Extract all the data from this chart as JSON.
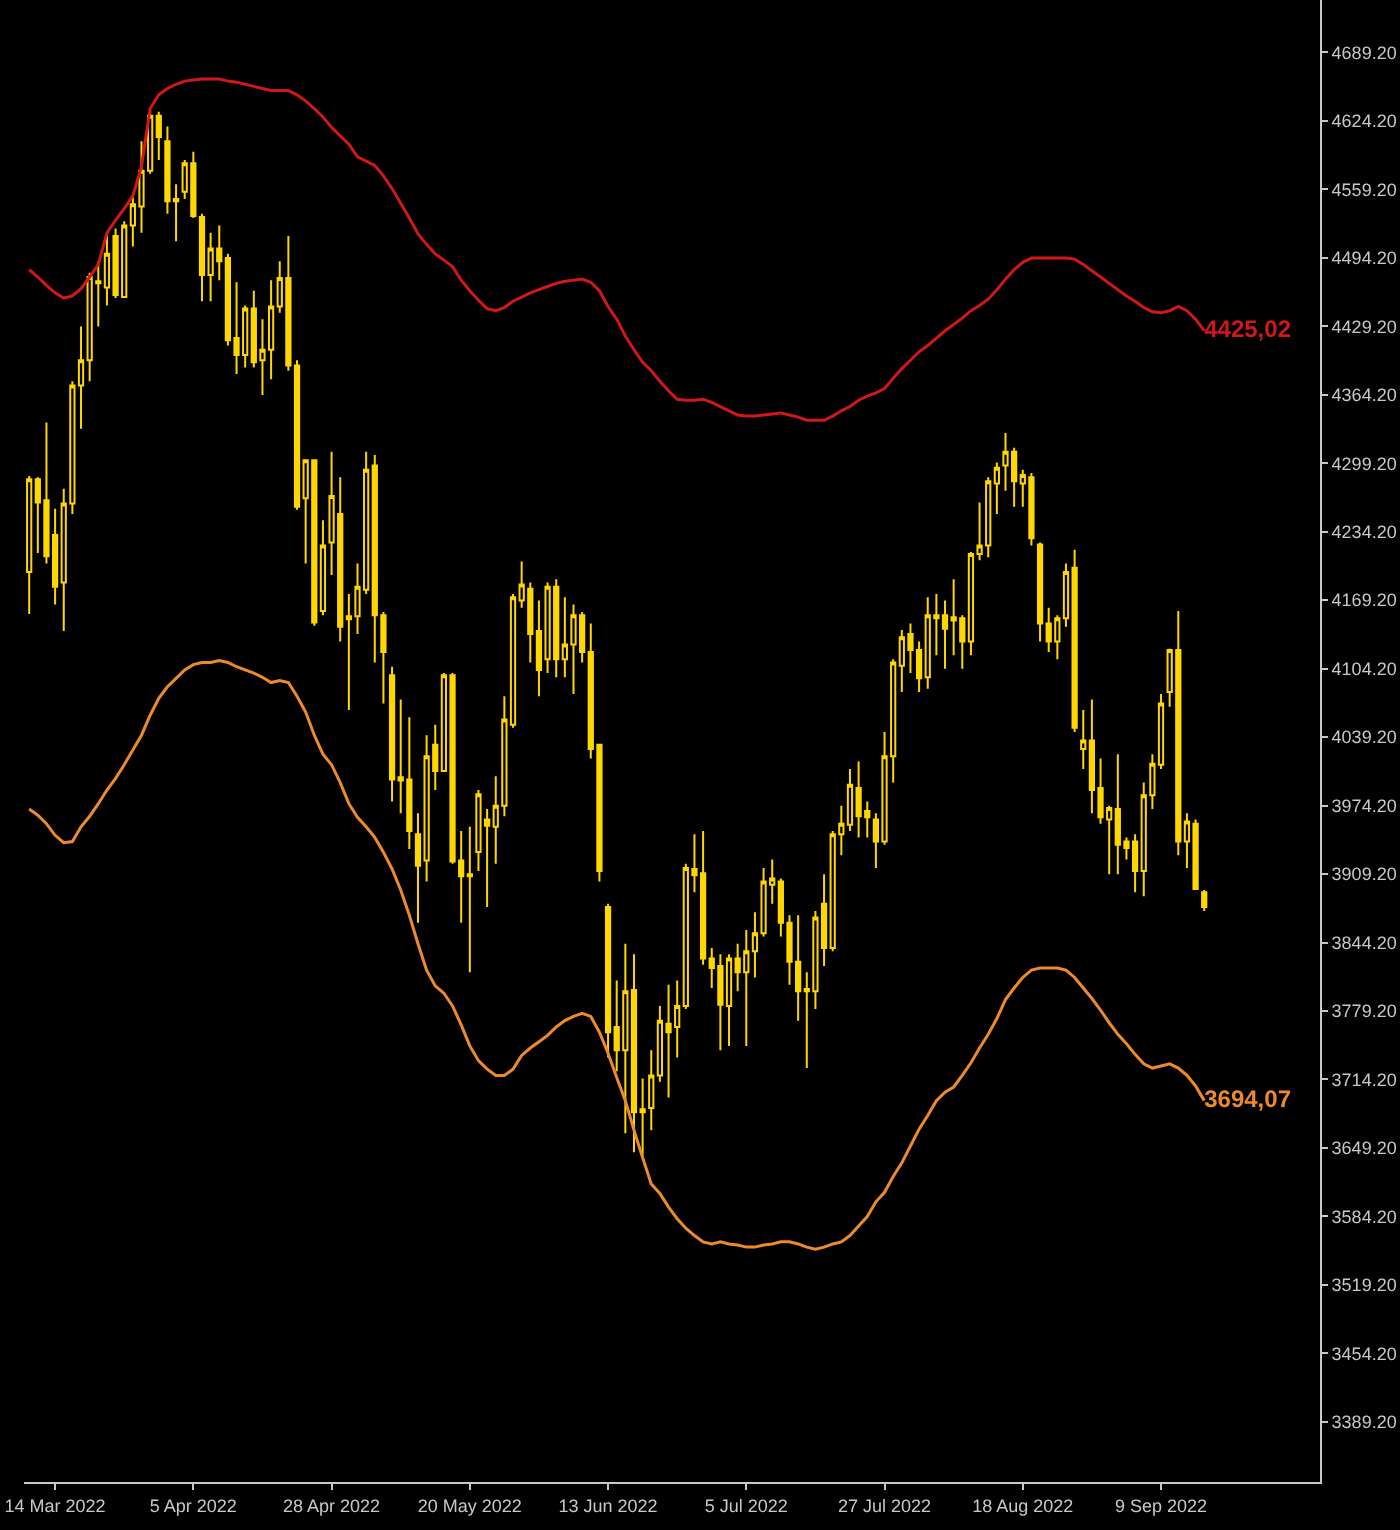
{
  "chart_data": {
    "type": "candlestick",
    "color": "#ffd700",
    "categories": [
      null,
      null,
      null,
      "14 Mar 2022",
      null,
      null,
      null,
      null,
      null,
      null,
      null,
      null,
      null,
      null,
      null,
      null,
      null,
      null,
      null,
      "5 Apr 2022",
      null,
      null,
      null,
      null,
      null,
      null,
      null,
      null,
      null,
      null,
      null,
      null,
      null,
      null,
      null,
      "28 Apr 2022",
      null,
      null,
      null,
      null,
      null,
      null,
      null,
      null,
      null,
      null,
      null,
      null,
      null,
      null,
      null,
      "20 May 2022",
      null,
      null,
      null,
      null,
      null,
      null,
      null,
      null,
      null,
      null,
      null,
      null,
      null,
      null,
      null,
      "13 Jun 2022",
      null,
      null,
      null,
      null,
      null,
      null,
      null,
      null,
      null,
      null,
      null,
      null,
      null,
      null,
      null,
      "5 Jul 2022",
      null,
      null,
      null,
      null,
      null,
      null,
      null,
      null,
      null,
      null,
      null,
      null,
      null,
      null,
      null,
      "27 Jul 2022",
      null,
      null,
      null,
      null,
      null,
      null,
      null,
      null,
      null,
      null,
      null,
      null,
      null,
      null,
      null,
      "18 Aug 2022",
      null,
      null,
      null,
      null,
      null,
      null,
      null,
      null,
      null,
      null,
      null,
      null,
      null,
      null,
      null,
      "9 Sep 2022",
      null,
      null,
      null,
      null,
      null
    ],
    "ohlc": [
      [
        4196,
        4287,
        4156,
        4284
      ],
      [
        4284,
        4286,
        4214,
        4262
      ],
      [
        4264,
        4338,
        4204,
        4211
      ],
      [
        4231,
        4256,
        4165,
        4182
      ],
      [
        4186,
        4275,
        4140,
        4261
      ],
      [
        4261,
        4377,
        4251,
        4373
      ],
      [
        4373,
        4429,
        4332,
        4397
      ],
      [
        4397,
        4480,
        4377,
        4476
      ],
      [
        4472,
        4491,
        4429,
        4470
      ],
      [
        4466,
        4518,
        4449,
        4498
      ],
      [
        4515,
        4522,
        4456,
        4459
      ],
      [
        4457,
        4529,
        4456,
        4525
      ],
      [
        4525,
        4553,
        4505,
        4545
      ],
      [
        4543,
        4605,
        4518,
        4577
      ],
      [
        4577,
        4636,
        4574,
        4629
      ],
      [
        4629,
        4633,
        4587,
        4609
      ],
      [
        4605,
        4619,
        4536,
        4548
      ],
      [
        4548,
        4564,
        4510,
        4550
      ],
      [
        4557,
        4587,
        4550,
        4584
      ],
      [
        4584,
        4595,
        4532,
        4534
      ],
      [
        4533,
        4536,
        4453,
        4478
      ],
      [
        4478,
        4518,
        4453,
        4503
      ],
      [
        4503,
        4525,
        4473,
        4491
      ],
      [
        4494,
        4498,
        4411,
        4416
      ],
      [
        4418,
        4471,
        4384,
        4402
      ],
      [
        4402,
        4449,
        4390,
        4446
      ],
      [
        4446,
        4463,
        4390,
        4395
      ],
      [
        4397,
        4436,
        4364,
        4407
      ],
      [
        4407,
        4473,
        4379,
        4448
      ],
      [
        4448,
        4491,
        4442,
        4475
      ],
      [
        4475,
        4515,
        4387,
        4392
      ],
      [
        4392,
        4397,
        4255,
        4258
      ],
      [
        4266,
        4303,
        4204,
        4302
      ],
      [
        4302,
        4303,
        4145,
        4148
      ],
      [
        4159,
        4245,
        4155,
        4221
      ],
      [
        4224,
        4310,
        4193,
        4268
      ],
      [
        4251,
        4286,
        4130,
        4144
      ],
      [
        4151,
        4175,
        4065,
        4154
      ],
      [
        4154,
        4204,
        4137,
        4182
      ],
      [
        4179,
        4310,
        4175,
        4293
      ],
      [
        4297,
        4307,
        4110,
        4155
      ],
      [
        4155,
        4158,
        4071,
        4120
      ],
      [
        4098,
        4106,
        3978,
        3999
      ],
      [
        3998,
        4075,
        3967,
        4001
      ],
      [
        3999,
        4058,
        3933,
        3950
      ],
      [
        3947,
        3967,
        3863,
        3917
      ],
      [
        3922,
        4041,
        3902,
        4021
      ],
      [
        4032,
        4051,
        3989,
        4007
      ],
      [
        4007,
        4100,
        4006,
        4098
      ],
      [
        4098,
        4100,
        3919,
        3921
      ],
      [
        3922,
        3950,
        3863,
        3907
      ],
      [
        3907,
        3954,
        3816,
        3909
      ],
      [
        3930,
        3989,
        3912,
        3985
      ],
      [
        3961,
        3971,
        3878,
        3955
      ],
      [
        3954,
        4002,
        3919,
        3974
      ],
      [
        3974,
        4078,
        3964,
        4056
      ],
      [
        4051,
        4175,
        4048,
        4172
      ],
      [
        4169,
        4206,
        4162,
        4184
      ],
      [
        4180,
        4186,
        4110,
        4137
      ],
      [
        4140,
        4169,
        4078,
        4103
      ],
      [
        4113,
        4186,
        4100,
        4182
      ],
      [
        4182,
        4189,
        4096,
        4113
      ],
      [
        4113,
        4172,
        4096,
        4127
      ],
      [
        4127,
        4165,
        4080,
        4155
      ],
      [
        4155,
        4158,
        4110,
        4120
      ],
      [
        4120,
        4147,
        4019,
        4028
      ],
      [
        4032,
        4033,
        3902,
        3912
      ],
      [
        3878,
        3881,
        3735,
        3759
      ],
      [
        3764,
        3808,
        3722,
        3742
      ],
      [
        3742,
        3843,
        3663,
        3798
      ],
      [
        3799,
        3833,
        3645,
        3683
      ],
      [
        3683,
        3715,
        3642,
        3686
      ],
      [
        3687,
        3742,
        3666,
        3718
      ],
      [
        3718,
        3784,
        3712,
        3770
      ],
      [
        3767,
        3804,
        3697,
        3759
      ],
      [
        3764,
        3808,
        3735,
        3784
      ],
      [
        3784,
        3919,
        3781,
        3915
      ],
      [
        3914,
        3947,
        3892,
        3908
      ],
      [
        3910,
        3950,
        3823,
        3829
      ],
      [
        3829,
        3839,
        3801,
        3820
      ],
      [
        3822,
        3833,
        3742,
        3785
      ],
      [
        3784,
        3833,
        3746,
        3829
      ],
      [
        3829,
        3843,
        3798,
        3816
      ],
      [
        3816,
        3856,
        3746,
        3836
      ],
      [
        3836,
        3873,
        3811,
        3853
      ],
      [
        3853,
        3915,
        3850,
        3902
      ],
      [
        3899,
        3923,
        3881,
        3905
      ],
      [
        3902,
        3905,
        3850,
        3863
      ],
      [
        3863,
        3870,
        3804,
        3826
      ],
      [
        3826,
        3870,
        3770,
        3798
      ],
      [
        3798,
        3816,
        3725,
        3800
      ],
      [
        3798,
        3874,
        3781,
        3868
      ],
      [
        3881,
        3909,
        3822,
        3839
      ],
      [
        3839,
        3950,
        3836,
        3947
      ],
      [
        3947,
        3974,
        3927,
        3957
      ],
      [
        3956,
        4009,
        3950,
        3994
      ],
      [
        3991,
        4016,
        3944,
        3964
      ],
      [
        3969,
        3978,
        3944,
        3963
      ],
      [
        3961,
        3967,
        3915,
        3940
      ],
      [
        3940,
        4044,
        3937,
        4021
      ],
      [
        4021,
        4113,
        3996,
        4110
      ],
      [
        4107,
        4141,
        4082,
        4134
      ],
      [
        4137,
        4147,
        4100,
        4122
      ],
      [
        4122,
        4130,
        4082,
        4095
      ],
      [
        4096,
        4172,
        4085,
        4155
      ],
      [
        4152,
        4175,
        4117,
        4155
      ],
      [
        4155,
        4169,
        4104,
        4142
      ],
      [
        4153,
        4189,
        4117,
        4150
      ],
      [
        4152,
        4155,
        4104,
        4130
      ],
      [
        4130,
        4215,
        4117,
        4213
      ],
      [
        4213,
        4262,
        4207,
        4221
      ],
      [
        4221,
        4286,
        4210,
        4282
      ],
      [
        4280,
        4300,
        4251,
        4295
      ],
      [
        4297,
        4328,
        4273,
        4310
      ],
      [
        4310,
        4314,
        4258,
        4282
      ],
      [
        4280,
        4293,
        4258,
        4288
      ],
      [
        4286,
        4290,
        4221,
        4228
      ],
      [
        4222,
        4224,
        4130,
        4147
      ],
      [
        4147,
        4162,
        4120,
        4130
      ],
      [
        4130,
        4155,
        4113,
        4152
      ],
      [
        4152,
        4204,
        4144,
        4196
      ],
      [
        4200,
        4217,
        4044,
        4048
      ],
      [
        4028,
        4065,
        4009,
        4036
      ],
      [
        4036,
        4075,
        3967,
        3989
      ],
      [
        3991,
        4019,
        3957,
        3963
      ],
      [
        3961,
        3974,
        3909,
        3972
      ],
      [
        3971,
        4023,
        3909,
        3937
      ],
      [
        3940,
        3944,
        3923,
        3934
      ],
      [
        3940,
        3947,
        3892,
        3912
      ],
      [
        3912,
        3996,
        3888,
        3984
      ],
      [
        3984,
        4023,
        3971,
        4014
      ],
      [
        4013,
        4080,
        4009,
        4071
      ],
      [
        4082,
        4123,
        4068,
        4122
      ],
      [
        4122,
        4159,
        3927,
        3940
      ],
      [
        3940,
        3967,
        3915,
        3959
      ],
      [
        3957,
        3961,
        3894,
        3895
      ],
      [
        3892,
        3894,
        3874,
        3878
      ]
    ],
    "series": [
      {
        "type": "line",
        "color": "#d01818",
        "values": [
          4483,
          4476,
          4468,
          4461,
          4456,
          4458,
          4465,
          4476,
          4488,
          4518,
          4530,
          4541,
          4553,
          4581,
          4636,
          4649,
          4655,
          4659,
          4662,
          4663,
          4664,
          4664,
          4664,
          4662,
          4661,
          4659,
          4657,
          4655,
          4653,
          4653,
          4653,
          4649,
          4643,
          4636,
          4628,
          4618,
          4610,
          4602,
          4590,
          4586,
          4582,
          4572,
          4560,
          4546,
          4532,
          4517,
          4507,
          4498,
          4492,
          4486,
          4473,
          4463,
          4454,
          4446,
          4444,
          4447,
          4453,
          4457,
          4461,
          4464,
          4467,
          4470,
          4472,
          4473,
          4474,
          4471,
          4463,
          4448,
          4436,
          4420,
          4407,
          4395,
          4387,
          4377,
          4368,
          4360,
          4359,
          4359,
          4360,
          4357,
          4353,
          4349,
          4345,
          4344,
          4344,
          4345,
          4346,
          4347,
          4345,
          4343,
          4340,
          4340,
          4340,
          4344,
          4349,
          4353,
          4359,
          4363,
          4366,
          4370,
          4380,
          4389,
          4397,
          4405,
          4411,
          4418,
          4425,
          4431,
          4437,
          4444,
          4449,
          4455,
          4464,
          4474,
          4483,
          4490,
          4494,
          4494,
          4494,
          4494,
          4494,
          4493,
          4488,
          4482,
          4476,
          4470,
          4464,
          4458,
          4453,
          4447,
          4443,
          4442,
          4444,
          4448,
          4444,
          4436,
          4425.02
        ],
        "value_labels": [
          null,
          null,
          null,
          null,
          null,
          null,
          null,
          null,
          null,
          null,
          null,
          null,
          null,
          null,
          null,
          null,
          null,
          null,
          null,
          null,
          null,
          null,
          null,
          null,
          null,
          null,
          null,
          null,
          null,
          null,
          null,
          null,
          null,
          null,
          null,
          null,
          null,
          null,
          null,
          null,
          null,
          null,
          null,
          null,
          null,
          null,
          null,
          null,
          null,
          null,
          null,
          null,
          null,
          null,
          null,
          null,
          null,
          null,
          null,
          null,
          null,
          null,
          null,
          null,
          null,
          null,
          null,
          null,
          null,
          null,
          null,
          null,
          null,
          null,
          null,
          null,
          null,
          null,
          null,
          null,
          null,
          null,
          null,
          null,
          null,
          null,
          null,
          null,
          null,
          null,
          null,
          null,
          null,
          null,
          null,
          null,
          null,
          null,
          null,
          null,
          null,
          null,
          null,
          null,
          null,
          null,
          null,
          null,
          null,
          null,
          null,
          null,
          null,
          null,
          null,
          null,
          null,
          null,
          null,
          null,
          null,
          null,
          null,
          null,
          null,
          null,
          null,
          null,
          null,
          null,
          null,
          null,
          null,
          null,
          null,
          null,
          "4425,02"
        ]
      },
      {
        "type": "line",
        "color": "#ec8a2c",
        "values": [
          3971,
          3965,
          3957,
          3946,
          3939,
          3940,
          3954,
          3964,
          3976,
          3989,
          4000,
          4013,
          4027,
          4041,
          4060,
          4076,
          4087,
          4095,
          4103,
          4108,
          4110,
          4110,
          4112,
          4110,
          4106,
          4103,
          4100,
          4096,
          4091,
          4093,
          4091,
          4078,
          4063,
          4041,
          4023,
          4013,
          3996,
          3976,
          3963,
          3954,
          3944,
          3930,
          3914,
          3894,
          3870,
          3843,
          3818,
          3803,
          3796,
          3784,
          3766,
          3746,
          3732,
          3724,
          3718,
          3718,
          3724,
          3737,
          3744,
          3750,
          3756,
          3764,
          3770,
          3774,
          3777,
          3774,
          3759,
          3739,
          3716,
          3694,
          3666,
          3640,
          3615,
          3606,
          3593,
          3582,
          3573,
          3566,
          3560,
          3558,
          3560,
          3558,
          3557,
          3555,
          3555,
          3557,
          3558,
          3560,
          3560,
          3558,
          3555,
          3553,
          3555,
          3558,
          3560,
          3566,
          3575,
          3584,
          3598,
          3607,
          3622,
          3635,
          3651,
          3667,
          3680,
          3694,
          3702,
          3707,
          3718,
          3730,
          3744,
          3757,
          3772,
          3790,
          3801,
          3811,
          3818,
          3820,
          3820,
          3820,
          3818,
          3811,
          3801,
          3791,
          3780,
          3768,
          3757,
          3748,
          3738,
          3729,
          3725,
          3727,
          3729,
          3725,
          3718,
          3708,
          3694.07
        ],
        "value_labels": [
          null,
          null,
          null,
          null,
          null,
          null,
          null,
          null,
          null,
          null,
          null,
          null,
          null,
          null,
          null,
          null,
          null,
          null,
          null,
          null,
          null,
          null,
          null,
          null,
          null,
          null,
          null,
          null,
          null,
          null,
          null,
          null,
          null,
          null,
          null,
          null,
          null,
          null,
          null,
          null,
          null,
          null,
          null,
          null,
          null,
          null,
          null,
          null,
          null,
          null,
          null,
          null,
          null,
          null,
          null,
          null,
          null,
          null,
          null,
          null,
          null,
          null,
          null,
          null,
          null,
          null,
          null,
          null,
          null,
          null,
          null,
          null,
          null,
          null,
          null,
          null,
          null,
          null,
          null,
          null,
          null,
          null,
          null,
          null,
          null,
          null,
          null,
          null,
          null,
          null,
          null,
          null,
          null,
          null,
          null,
          null,
          null,
          null,
          null,
          null,
          null,
          null,
          null,
          null,
          null,
          null,
          null,
          null,
          null,
          null,
          null,
          null,
          null,
          null,
          null,
          null,
          null,
          null,
          null,
          null,
          null,
          null,
          null,
          null,
          null,
          null,
          null,
          null,
          null,
          null,
          null,
          null,
          null,
          null,
          null,
          null,
          "3694,07"
        ]
      }
    ],
    "ylim": [
      3332,
      4739
    ],
    "yticks": [
      {
        "value": 4689.2,
        "label": "4689.20"
      },
      {
        "value": 4624.2,
        "label": "4624.20"
      },
      {
        "value": 4559.2,
        "label": "4559.20"
      },
      {
        "value": 4494.2,
        "label": "4494.20"
      },
      {
        "value": 4429.2,
        "label": "4429.20"
      },
      {
        "value": 4364.2,
        "label": "4364.20"
      },
      {
        "value": 4299.2,
        "label": "4299.20"
      },
      {
        "value": 4234.2,
        "label": "4234.20"
      },
      {
        "value": 4169.2,
        "label": "4169.20"
      },
      {
        "value": 4104.2,
        "label": "4104.20"
      },
      {
        "value": 4039.2,
        "label": "4039.20"
      },
      {
        "value": 3974.2,
        "label": "3974.20"
      },
      {
        "value": 3909.2,
        "label": "3909.20"
      },
      {
        "value": 3844.2,
        "label": "3844.20"
      },
      {
        "value": 3779.2,
        "label": "3779.20"
      },
      {
        "value": 3714.2,
        "label": "3714.20"
      },
      {
        "value": 3649.2,
        "label": "3649.20"
      },
      {
        "value": 3584.2,
        "label": "3584.20"
      },
      {
        "value": 3519.2,
        "label": "3519.20"
      },
      {
        "value": 3454.2,
        "label": "3454.20"
      },
      {
        "value": 3389.2,
        "label": "3389.20"
      }
    ]
  }
}
